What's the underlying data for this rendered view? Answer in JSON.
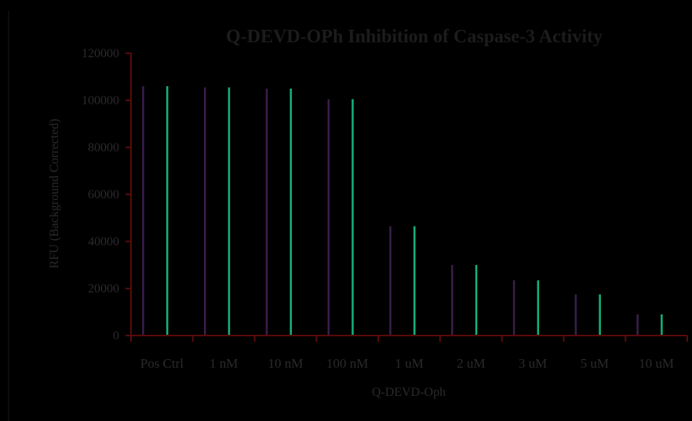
{
  "chart_data": {
    "type": "bar",
    "title": "Q-DEVD-OPh Inhibition of Caspase-3 Activity",
    "xlabel": "Q-DEVD-Oph",
    "ylabel": "RFU (Background Corrected)",
    "ylim": [
      0,
      120000
    ],
    "yticks": [
      "0",
      "20000",
      "40000",
      "60000",
      "80000",
      "100000",
      "120000"
    ],
    "categories": [
      "Pos Ctrl",
      "1 nM",
      "10 nM",
      "100 nM",
      "1 uM",
      "2 uM",
      "3 uM",
      "5 uM",
      "10 uM"
    ],
    "series": [
      {
        "values": [
          106000,
          105500,
          105000,
          100500,
          46500,
          30000,
          23500,
          17500,
          9000
        ],
        "color": "#3b1e4a"
      },
      {
        "values": [
          106000,
          105500,
          105000,
          100500,
          46500,
          30000,
          23500,
          17500,
          9000
        ],
        "color": "#14b47a"
      }
    ],
    "grid": false,
    "legend": "none",
    "axis_color": "#5a0a0a"
  }
}
